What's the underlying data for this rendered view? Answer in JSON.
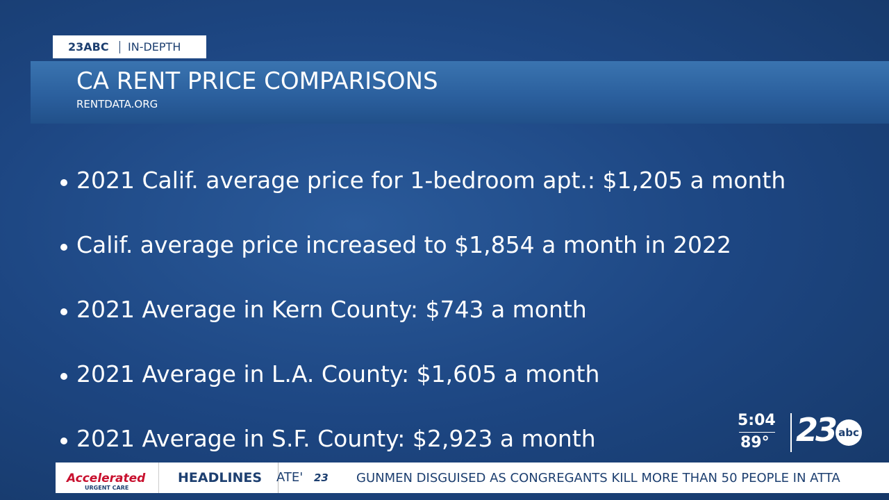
{
  "tag": {
    "station": "23ABC",
    "section": "IN-DEPTH"
  },
  "header": {
    "title": "CA RENT PRICE COMPARISONS",
    "source": "RENTDATA.ORG"
  },
  "bullets": [
    "2021 Calif. average price for 1-bedroom apt.: $1,205 a month",
    "Calif. average price increased to $1,854 a month in 2022",
    "2021 Average in Kern County: $743 a month",
    "2021 Average in L.A. County: $1,605 a month",
    "2021 Average in S.F. County: $2,923 a month"
  ],
  "bug": {
    "time": "5:04",
    "temperature": "89°",
    "logo_number": "23",
    "logo_network": "abc"
  },
  "ticker": {
    "sponsor": "Accelerated",
    "sponsor_sub": "URGENT CARE",
    "label": "HEADLINES",
    "fragment": "ATE'",
    "mini_logo": "23",
    "headline": "GUNMEN DISGUISED AS CONGREGANTS KILL MORE THAN 50 PEOPLE IN ATTA"
  }
}
